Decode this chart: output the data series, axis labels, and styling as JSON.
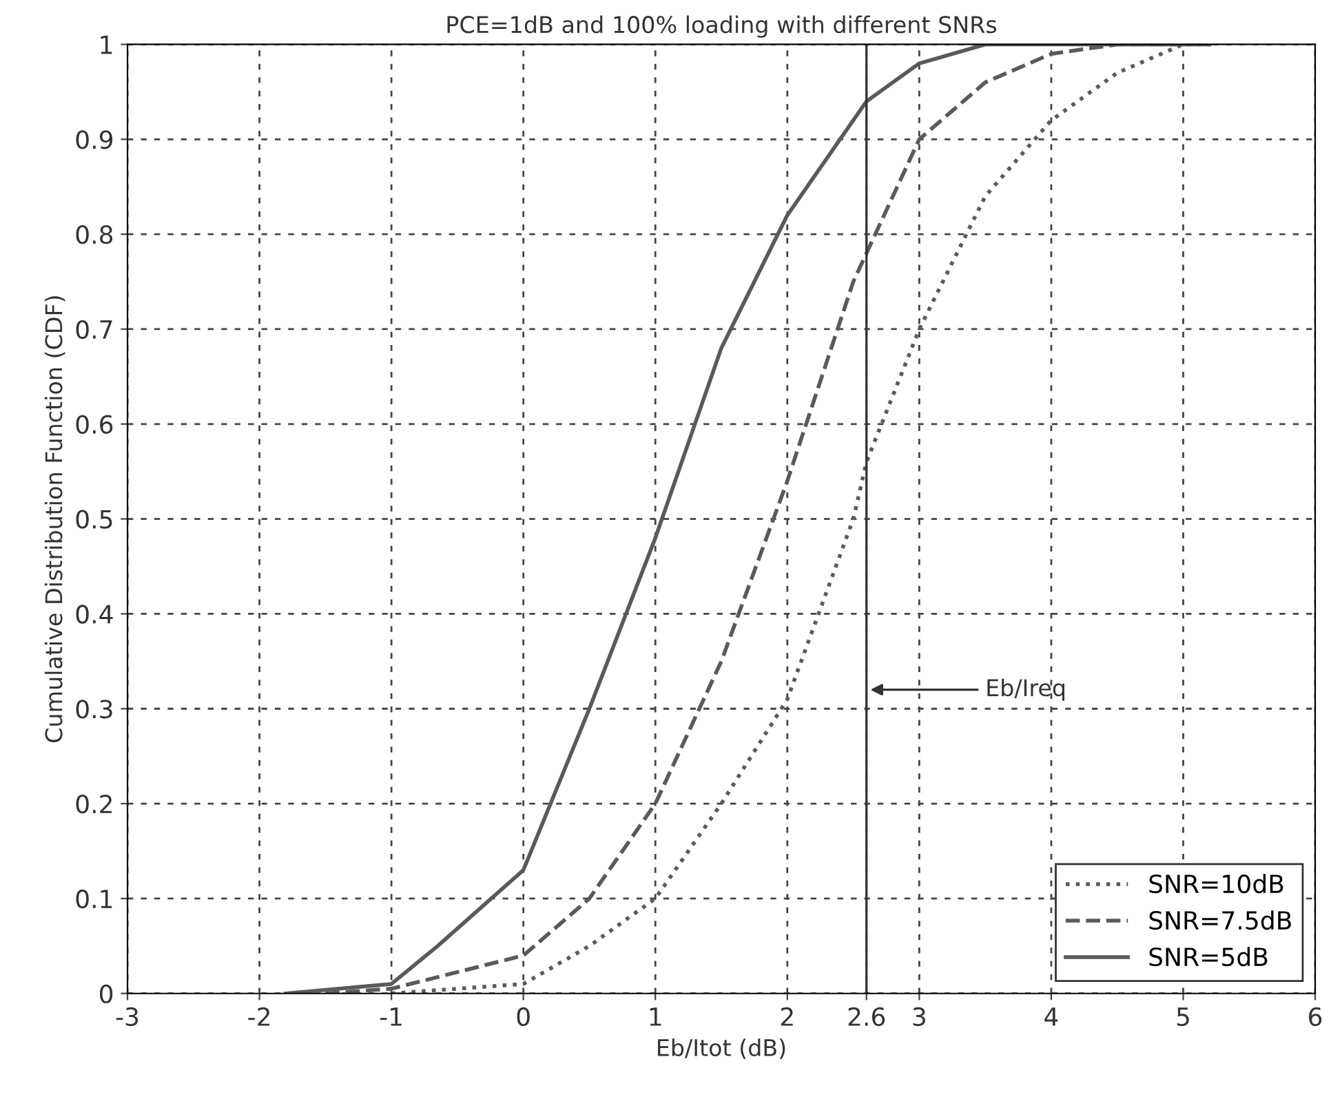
{
  "chart_data": {
    "type": "line",
    "title": "PCE=1dB and 100% loading with different SNRs",
    "xlabel": "Eb/Itot (dB)",
    "ylabel": "Cumulative Distribution Function (CDF)",
    "xlim": [
      -3,
      6
    ],
    "ylim": [
      0,
      1
    ],
    "xticks": [
      -3,
      -2,
      -1,
      0,
      1,
      2,
      2.6,
      3,
      4,
      5,
      6
    ],
    "yticks": [
      0,
      0.1,
      0.2,
      0.3,
      0.4,
      0.5,
      0.6,
      0.7,
      0.8,
      0.9,
      1
    ],
    "grid": true,
    "legend": "bottom right",
    "series": [
      {
        "name": "SNR=10dB",
        "color": "#5a5a5a",
        "line_style": "dotted",
        "x": [
          -1,
          0,
          0.5,
          1,
          1.5,
          2,
          2.5,
          2.6,
          3,
          3.5,
          4,
          4.5,
          5,
          5.2
        ],
        "values": [
          0,
          0.01,
          0.05,
          0.1,
          0.2,
          0.31,
          0.5,
          0.56,
          0.7,
          0.84,
          0.92,
          0.97,
          1.0,
          1.0
        ]
      },
      {
        "name": "SNR=7.5dB",
        "color": "#5a5a5a",
        "line_style": "dashed",
        "x": [
          -1.5,
          -1,
          0,
          0.5,
          1,
          1.5,
          2,
          2.5,
          2.6,
          3,
          3.5,
          4,
          4.5,
          5
        ],
        "values": [
          0,
          0.005,
          0.04,
          0.1,
          0.2,
          0.35,
          0.54,
          0.75,
          0.78,
          0.9,
          0.96,
          0.99,
          1.0,
          1.0
        ]
      },
      {
        "name": "SNR=5dB",
        "color": "#5a5a5a",
        "line_style": "solid",
        "x": [
          -1.8,
          -1,
          -0.65,
          0,
          0.5,
          1,
          1.5,
          2,
          2.6,
          3,
          3.5,
          4,
          5.2
        ],
        "values": [
          0,
          0.01,
          0.05,
          0.13,
          0.3,
          0.48,
          0.68,
          0.82,
          0.94,
          0.98,
          1.0,
          1.0,
          1.0
        ]
      }
    ],
    "ref_lines": [
      {
        "axis": "x",
        "value": 2.6,
        "color": "#333333",
        "line_style": "solid"
      }
    ],
    "annotations": [
      {
        "text": "Eb/Ireq",
        "x": 2.6,
        "y": 0.32
      }
    ]
  }
}
